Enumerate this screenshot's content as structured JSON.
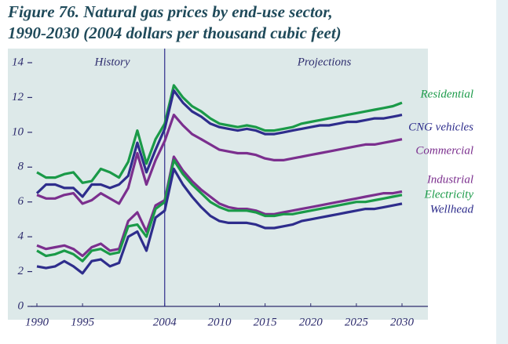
{
  "chart_data": {
    "type": "line",
    "title_lines": [
      "Figure 76. Natural gas prices by end-use sector,",
      "1990-2030 (2004 dollars per thousand cubic feet)"
    ],
    "annotations": [
      "History",
      "Projections"
    ],
    "x": [
      1990,
      1991,
      1992,
      1993,
      1994,
      1995,
      1996,
      1997,
      1998,
      1999,
      2000,
      2001,
      2002,
      2003,
      2004,
      2005,
      2006,
      2007,
      2008,
      2009,
      2010,
      2011,
      2012,
      2013,
      2014,
      2015,
      2016,
      2017,
      2018,
      2019,
      2020,
      2021,
      2022,
      2023,
      2024,
      2025,
      2026,
      2027,
      2028,
      2029,
      2030
    ],
    "xlim": [
      1990,
      2030
    ],
    "xticks": [
      1990,
      1995,
      2004,
      2010,
      2015,
      2020,
      2025,
      2030
    ],
    "ylim": [
      0,
      14
    ],
    "yticks": [
      0,
      2,
      4,
      6,
      8,
      10,
      12,
      14
    ],
    "divider": 2004,
    "series": [
      {
        "name": "Residential",
        "color": "#1a9a48",
        "values": [
          7.7,
          7.4,
          7.4,
          7.6,
          7.7,
          7.1,
          7.2,
          7.9,
          7.7,
          7.4,
          8.3,
          10.1,
          8.2,
          9.6,
          10.5,
          12.7,
          12.0,
          11.5,
          11.2,
          10.8,
          10.5,
          10.4,
          10.3,
          10.4,
          10.3,
          10.1,
          10.1,
          10.2,
          10.3,
          10.5,
          10.6,
          10.7,
          10.8,
          10.9,
          11.0,
          11.1,
          11.2,
          11.3,
          11.4,
          11.5,
          11.7
        ]
      },
      {
        "name": "CNG vehicles",
        "color": "#2e2d8c",
        "values": [
          6.5,
          7.0,
          7.0,
          6.8,
          6.8,
          6.3,
          7.0,
          7.0,
          6.8,
          7.0,
          7.5,
          9.4,
          7.7,
          9.0,
          10.2,
          12.4,
          11.7,
          11.2,
          10.9,
          10.5,
          10.3,
          10.2,
          10.1,
          10.2,
          10.1,
          9.9,
          9.9,
          10.0,
          10.1,
          10.2,
          10.3,
          10.4,
          10.4,
          10.5,
          10.6,
          10.6,
          10.7,
          10.8,
          10.8,
          10.9,
          11.0
        ]
      },
      {
        "name": "Commercial",
        "color": "#7b2f8e",
        "values": [
          6.4,
          6.2,
          6.2,
          6.4,
          6.5,
          5.9,
          6.1,
          6.5,
          6.2,
          5.9,
          6.8,
          8.8,
          7.0,
          8.4,
          9.5,
          11.0,
          10.4,
          9.9,
          9.6,
          9.3,
          9.0,
          8.9,
          8.8,
          8.8,
          8.7,
          8.5,
          8.4,
          8.4,
          8.5,
          8.6,
          8.7,
          8.8,
          8.9,
          9.0,
          9.1,
          9.2,
          9.3,
          9.3,
          9.4,
          9.5,
          9.6
        ]
      },
      {
        "name": "Industrial",
        "color": "#7b2f8e",
        "values": [
          3.5,
          3.3,
          3.4,
          3.5,
          3.3,
          2.9,
          3.4,
          3.6,
          3.2,
          3.3,
          4.9,
          5.4,
          4.3,
          5.8,
          6.1,
          8.6,
          7.8,
          7.2,
          6.7,
          6.3,
          5.9,
          5.7,
          5.6,
          5.6,
          5.5,
          5.3,
          5.3,
          5.4,
          5.5,
          5.6,
          5.7,
          5.8,
          5.9,
          6.0,
          6.1,
          6.2,
          6.3,
          6.4,
          6.5,
          6.5,
          6.6
        ]
      },
      {
        "name": "Electricity",
        "color": "#1a9a48",
        "values": [
          3.2,
          2.9,
          3.0,
          3.2,
          3.0,
          2.6,
          3.2,
          3.3,
          3.0,
          3.1,
          4.6,
          4.7,
          4.0,
          5.6,
          6.0,
          8.4,
          7.6,
          7.0,
          6.5,
          6.0,
          5.7,
          5.5,
          5.5,
          5.5,
          5.4,
          5.2,
          5.2,
          5.3,
          5.3,
          5.4,
          5.5,
          5.6,
          5.7,
          5.8,
          5.9,
          6.0,
          6.0,
          6.1,
          6.2,
          6.3,
          6.4
        ]
      },
      {
        "name": "Wellhead",
        "color": "#2e2d8c",
        "values": [
          2.3,
          2.2,
          2.3,
          2.6,
          2.3,
          1.9,
          2.6,
          2.7,
          2.3,
          2.5,
          4.0,
          4.3,
          3.2,
          5.1,
          5.5,
          7.9,
          7.0,
          6.3,
          5.7,
          5.2,
          4.9,
          4.8,
          4.8,
          4.8,
          4.7,
          4.5,
          4.5,
          4.6,
          4.7,
          4.9,
          5.0,
          5.1,
          5.2,
          5.3,
          5.4,
          5.5,
          5.6,
          5.6,
          5.7,
          5.8,
          5.9
        ]
      }
    ]
  }
}
